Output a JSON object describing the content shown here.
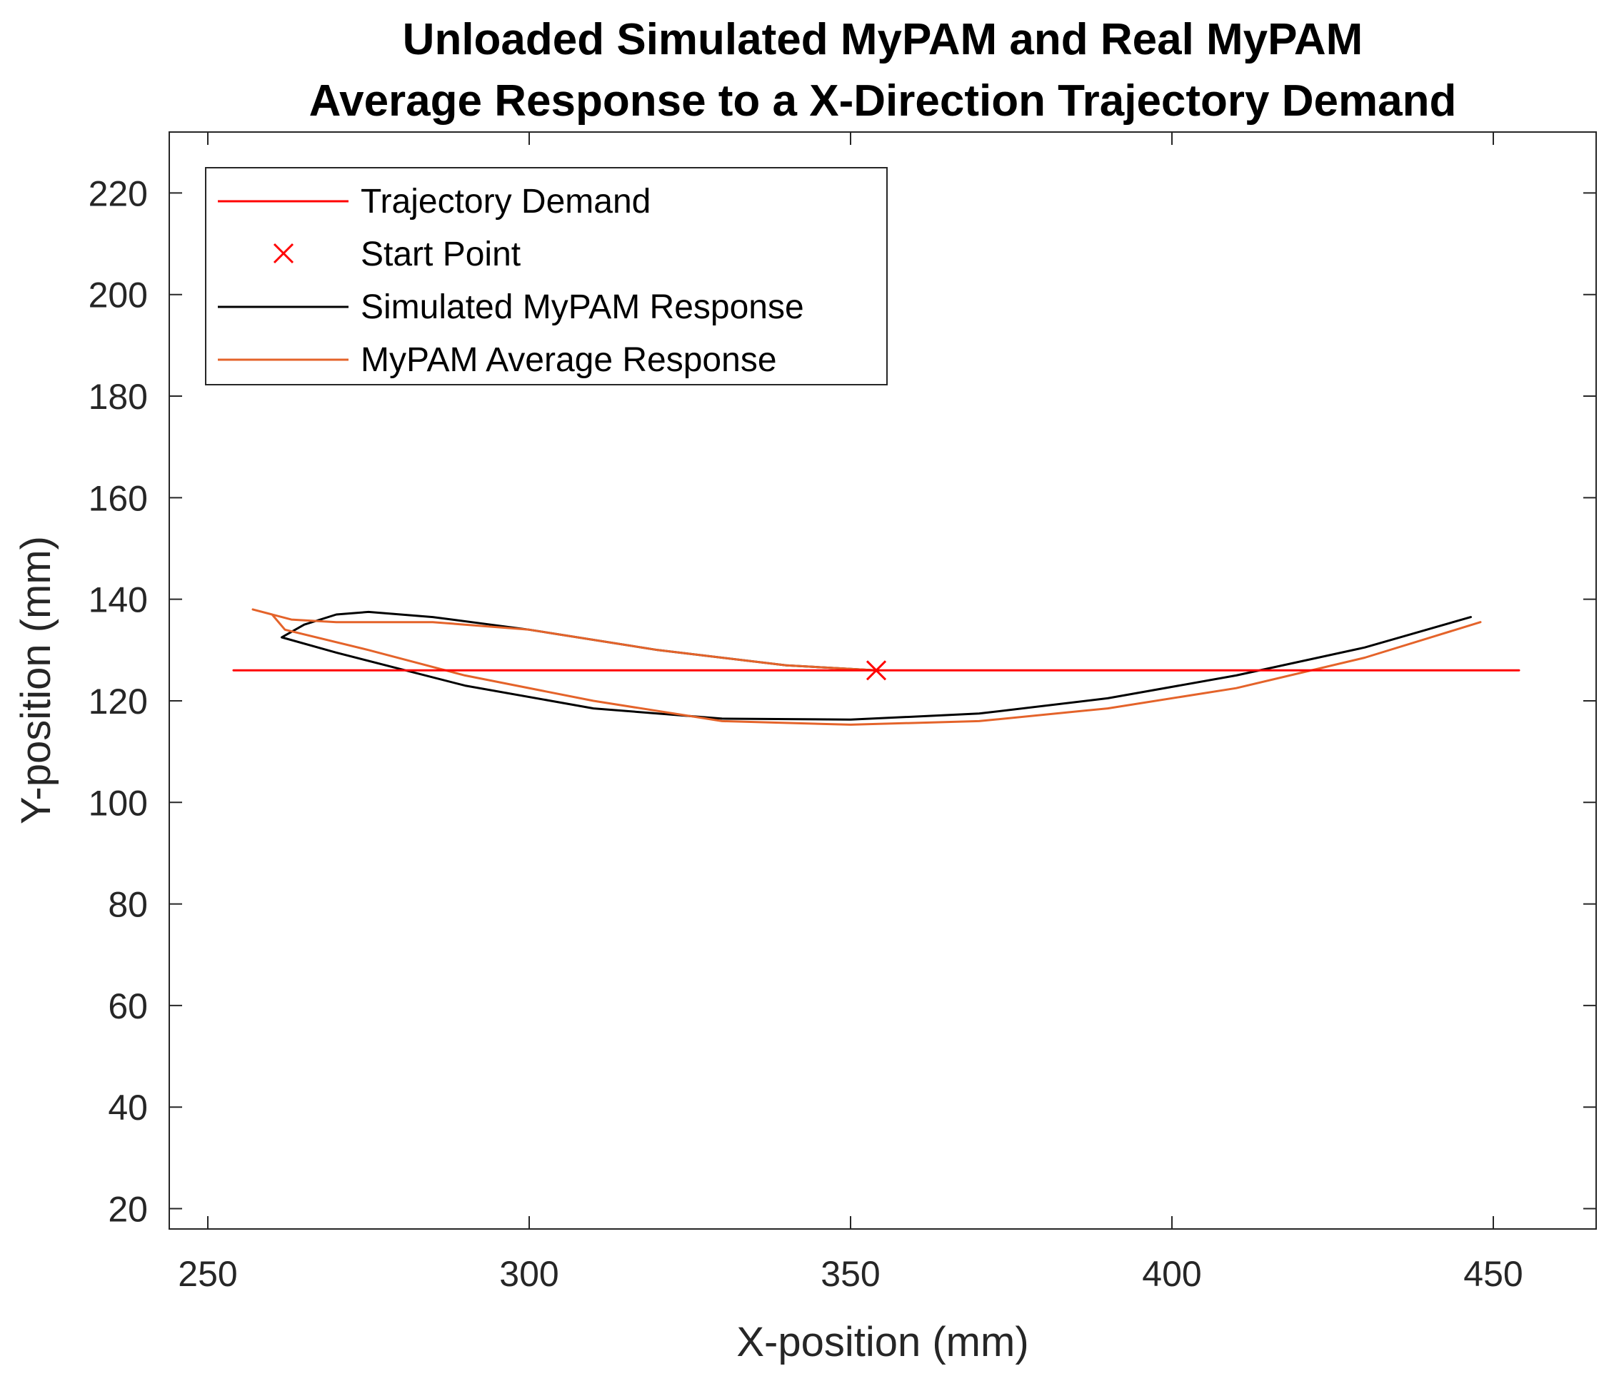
{
  "chart_data": {
    "type": "line",
    "title_lines": [
      "Unloaded Simulated MyPAM and Real MyPAM",
      "Average Response to a X-Direction Trajectory Demand"
    ],
    "xlabel": "X-position (mm)",
    "ylabel": "Y-position (mm)",
    "xlim": [
      244,
      466
    ],
    "ylim": [
      16,
      232
    ],
    "xticks": [
      250,
      300,
      350,
      400,
      450
    ],
    "yticks": [
      20,
      40,
      60,
      80,
      100,
      120,
      140,
      160,
      180,
      200,
      220
    ],
    "grid": false,
    "legend_position": "top-left",
    "series": [
      {
        "name": "Trajectory Demand",
        "color": "#ff0000",
        "style": "line",
        "points": [
          [
            254,
            126
          ],
          [
            454,
            126
          ]
        ]
      },
      {
        "name": "Start Point",
        "color": "#ff0000",
        "style": "marker-x",
        "points": [
          [
            354,
            126
          ]
        ]
      },
      {
        "name": "Simulated MyPAM Response",
        "color": "#000000",
        "style": "line",
        "points": [
          [
            354,
            126
          ],
          [
            340,
            127
          ],
          [
            320,
            130
          ],
          [
            300,
            134
          ],
          [
            285,
            136.5
          ],
          [
            275,
            137.5
          ],
          [
            270,
            137
          ],
          [
            265,
            135
          ],
          [
            261.5,
            132.5
          ],
          [
            270,
            129.5
          ],
          [
            290,
            123
          ],
          [
            310,
            118.5
          ],
          [
            330,
            116.5
          ],
          [
            350,
            116.3
          ],
          [
            370,
            117.5
          ],
          [
            390,
            120.5
          ],
          [
            410,
            125
          ],
          [
            430,
            130.5
          ],
          [
            446.5,
            136.5
          ]
        ]
      },
      {
        "name": "MyPAM Average Response",
        "color": "#e4632a",
        "style": "line",
        "points": [
          [
            354,
            126
          ],
          [
            340,
            127
          ],
          [
            320,
            130
          ],
          [
            300,
            134
          ],
          [
            285,
            135.5
          ],
          [
            270,
            135.5
          ],
          [
            263,
            136
          ],
          [
            257,
            138
          ],
          [
            260,
            137
          ],
          [
            262,
            134
          ],
          [
            275,
            130
          ],
          [
            290,
            125
          ],
          [
            310,
            120
          ],
          [
            330,
            116
          ],
          [
            350,
            115.3
          ],
          [
            370,
            116
          ],
          [
            390,
            118.5
          ],
          [
            410,
            122.5
          ],
          [
            430,
            128.5
          ],
          [
            448,
            135.5
          ]
        ]
      }
    ]
  }
}
